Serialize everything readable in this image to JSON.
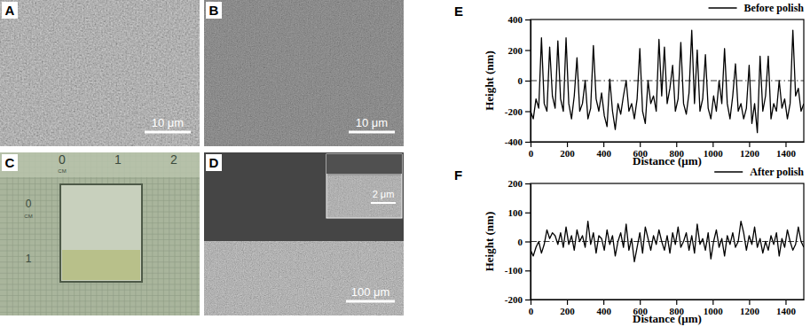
{
  "panels": [
    {
      "label": "A",
      "scale_bar": "10 μm"
    },
    {
      "label": "B",
      "scale_bar": "10 μm"
    },
    {
      "label": "C",
      "ruler_labels": [
        "0",
        "1",
        "2",
        "CM",
        "0",
        "CM",
        "1"
      ]
    },
    {
      "label": "D",
      "scale_bar": "100 μm",
      "inset_scale_bar": "2 μm"
    }
  ],
  "chart_data": [
    {
      "type": "line",
      "panel": "E",
      "x_label": "Distance (μm)",
      "y_label": "Height (nm)",
      "legend": "upper right",
      "x": [
        0,
        15,
        30,
        45,
        60,
        75,
        90,
        105,
        120,
        135,
        150,
        165,
        180,
        195,
        210,
        225,
        240,
        255,
        270,
        285,
        300,
        315,
        330,
        345,
        360,
        375,
        390,
        405,
        420,
        435,
        450,
        465,
        480,
        495,
        510,
        525,
        540,
        555,
        570,
        585,
        600,
        615,
        630,
        645,
        660,
        675,
        690,
        705,
        720,
        735,
        750,
        765,
        780,
        795,
        810,
        825,
        840,
        855,
        870,
        885,
        900,
        915,
        930,
        945,
        960,
        975,
        990,
        1005,
        1020,
        1035,
        1050,
        1065,
        1080,
        1095,
        1110,
        1125,
        1140,
        1155,
        1170,
        1185,
        1200,
        1215,
        1230,
        1245,
        1260,
        1275,
        1290,
        1305,
        1320,
        1335,
        1350,
        1365,
        1380,
        1395,
        1410,
        1425,
        1440,
        1455,
        1470,
        1485,
        1500
      ],
      "series": [
        {
          "name": "Before polish",
          "color": "#000000",
          "values": [
            -200,
            -250,
            -120,
            -180,
            280,
            -150,
            -200,
            220,
            -100,
            -180,
            260,
            -120,
            -200,
            280,
            -150,
            -250,
            -100,
            150,
            -200,
            -150,
            0,
            -250,
            -180,
            230,
            -120,
            -200,
            -80,
            -230,
            -300,
            10,
            -200,
            -320,
            -150,
            -220,
            -100,
            0,
            -200,
            -150,
            -250,
            -120,
            210,
            -200,
            -280,
            0,
            -150,
            -100,
            -200,
            270,
            -100,
            220,
            -150,
            -50,
            100,
            -200,
            -120,
            250,
            -150,
            -220,
            -80,
            330,
            -150,
            200,
            -200,
            -120,
            170,
            -180,
            -250,
            -100,
            -200,
            0,
            -150,
            210,
            -150,
            -250,
            -100,
            110,
            -200,
            -150,
            -250,
            -180,
            100,
            -280,
            -150,
            -340,
            160,
            -200,
            -100,
            160,
            -250,
            -150,
            -200,
            0,
            -180,
            -120,
            -250,
            -150,
            330,
            -100,
            -50,
            -200,
            -150
          ]
        }
      ],
      "reference_line": 0,
      "xlim": [
        0,
        1500
      ],
      "xticks": [
        0,
        200,
        400,
        600,
        800,
        1000,
        1200,
        1400
      ],
      "ylim": [
        -400,
        400
      ],
      "yticks": [
        -400,
        -200,
        0,
        200,
        400
      ]
    },
    {
      "type": "line",
      "panel": "F",
      "x_label": "Distance (μm)",
      "y_label": "Height (nm)",
      "legend": "upper right",
      "x": [
        0,
        15,
        30,
        45,
        60,
        75,
        90,
        105,
        120,
        135,
        150,
        165,
        180,
        195,
        210,
        225,
        240,
        255,
        270,
        285,
        300,
        315,
        330,
        345,
        360,
        375,
        390,
        405,
        420,
        435,
        450,
        465,
        480,
        495,
        510,
        525,
        540,
        555,
        570,
        585,
        600,
        615,
        630,
        645,
        660,
        675,
        690,
        705,
        720,
        735,
        750,
        765,
        780,
        795,
        810,
        825,
        840,
        855,
        870,
        885,
        900,
        915,
        930,
        945,
        960,
        975,
        990,
        1005,
        1020,
        1035,
        1050,
        1065,
        1080,
        1095,
        1110,
        1125,
        1140,
        1155,
        1170,
        1185,
        1200,
        1215,
        1230,
        1245,
        1260,
        1275,
        1290,
        1305,
        1320,
        1335,
        1350,
        1365,
        1380,
        1395,
        1410,
        1425,
        1440,
        1455,
        1470,
        1485,
        1500
      ],
      "series": [
        {
          "name": "After polish",
          "color": "#000000",
          "values": [
            -30,
            -50,
            -20,
            0,
            -40,
            -10,
            40,
            10,
            30,
            20,
            -10,
            30,
            -20,
            50,
            -10,
            20,
            -30,
            40,
            0,
            20,
            -20,
            70,
            -10,
            30,
            -40,
            20,
            10,
            -30,
            40,
            -10,
            20,
            -50,
            0,
            30,
            -20,
            60,
            -30,
            10,
            -70,
            -20,
            30,
            -40,
            50,
            10,
            -30,
            20,
            -10,
            40,
            0,
            -30,
            20,
            -40,
            30,
            -10,
            50,
            -20,
            0,
            30,
            -30,
            20,
            -40,
            60,
            -10,
            10,
            -30,
            30,
            -60,
            0,
            40,
            -20,
            10,
            -50,
            20,
            -10,
            30,
            -20,
            0,
            70,
            30,
            -30,
            20,
            -10,
            50,
            -20,
            10,
            -40,
            0,
            -30,
            20,
            -10,
            30,
            -50,
            10,
            -20,
            40,
            0,
            -30,
            -10,
            50,
            0,
            -20
          ]
        }
      ],
      "reference_line": 0,
      "xlim": [
        0,
        1500
      ],
      "xticks": [
        0,
        200,
        400,
        600,
        800,
        1000,
        1200,
        1400
      ],
      "ylim": [
        -200,
        200
      ],
      "yticks": [
        -200,
        -100,
        0,
        100,
        200
      ]
    }
  ]
}
